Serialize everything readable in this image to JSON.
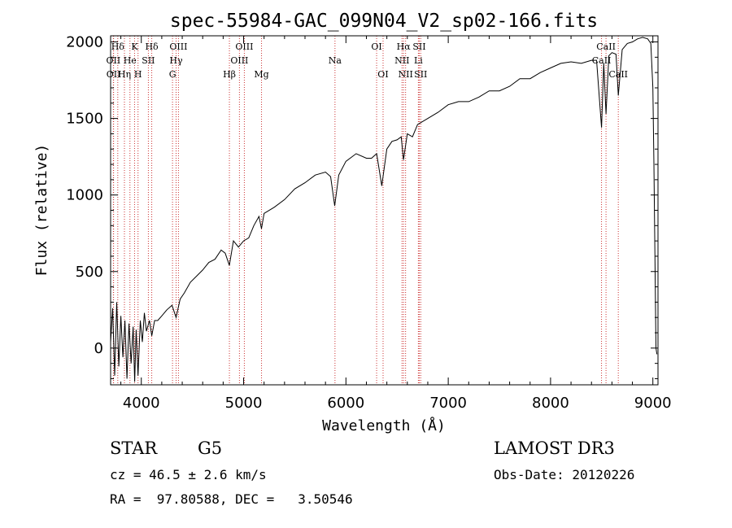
{
  "chart_data": {
    "type": "line",
    "title": "spec-55984-GAC_099N04_V2_sp02-166.fits",
    "xlabel": "Wavelength (Å)",
    "ylabel": "Flux (relative)",
    "xlim": [
      3700,
      9050
    ],
    "ylim": [
      -240,
      2040
    ],
    "xticks": [
      4000,
      5000,
      6000,
      7000,
      8000,
      9000
    ],
    "yticks": [
      0,
      500,
      1000,
      1500,
      2000
    ],
    "series": [
      {
        "name": "Flux",
        "x": [
          3700,
          3720,
          3740,
          3760,
          3780,
          3800,
          3820,
          3840,
          3860,
          3880,
          3900,
          3920,
          3935,
          3950,
          3968,
          3990,
          4010,
          4030,
          4050,
          4080,
          4102,
          4130,
          4160,
          4200,
          4250,
          4300,
          4340,
          4380,
          4420,
          4480,
          4540,
          4600,
          4660,
          4720,
          4780,
          4820,
          4861,
          4900,
          4950,
          5000,
          5050,
          5100,
          5150,
          5175,
          5200,
          5300,
          5400,
          5500,
          5600,
          5700,
          5800,
          5850,
          5890,
          5930,
          6000,
          6100,
          6200,
          6250,
          6300,
          6350,
          6400,
          6450,
          6500,
          6540,
          6563,
          6600,
          6650,
          6700,
          6800,
          6900,
          7000,
          7100,
          7200,
          7300,
          7400,
          7500,
          7600,
          7700,
          7800,
          7900,
          8000,
          8100,
          8200,
          8300,
          8400,
          8450,
          8498,
          8520,
          8542,
          8570,
          8600,
          8640,
          8662,
          8700,
          8750,
          8800,
          8850,
          8900,
          8950,
          8980,
          9000,
          9010,
          9030,
          9040
        ],
        "values": [
          40,
          260,
          -180,
          300,
          -120,
          210,
          -60,
          180,
          -200,
          160,
          -100,
          140,
          -220,
          120,
          -180,
          180,
          40,
          230,
          110,
          180,
          80,
          180,
          180,
          210,
          250,
          280,
          200,
          320,
          360,
          430,
          470,
          510,
          560,
          580,
          640,
          620,
          540,
          700,
          660,
          700,
          720,
          800,
          860,
          780,
          880,
          920,
          970,
          1040,
          1080,
          1130,
          1150,
          1120,
          930,
          1130,
          1220,
          1270,
          1240,
          1240,
          1270,
          1060,
          1300,
          1350,
          1360,
          1380,
          1230,
          1400,
          1380,
          1460,
          1500,
          1540,
          1590,
          1610,
          1610,
          1640,
          1680,
          1680,
          1710,
          1760,
          1760,
          1800,
          1830,
          1860,
          1870,
          1860,
          1880,
          1880,
          1440,
          1860,
          1530,
          1910,
          1930,
          1920,
          1650,
          1950,
          1990,
          2000,
          2020,
          2030,
          2020,
          1990,
          1700,
          1200,
          0,
          -40
        ]
      }
    ],
    "spectral_lines": [
      {
        "label": "Hδ",
        "wavelength": 3770,
        "row": 1
      },
      {
        "label": "OII",
        "wavelength": 3727,
        "row": 2
      },
      {
        "label": "OII",
        "wavelength": 3729,
        "row": 3
      },
      {
        "label": "He",
        "wavelength": 3889,
        "row": 2
      },
      {
        "label": "Hη",
        "wavelength": 3835,
        "row": 3
      },
      {
        "label": "K",
        "wavelength": 3934,
        "row": 1
      },
      {
        "label": "H",
        "wavelength": 3968,
        "row": 3
      },
      {
        "label": "SII",
        "wavelength": 4069,
        "row": 2
      },
      {
        "label": "Hδ",
        "wavelength": 4102,
        "row": 1
      },
      {
        "label": "OIII",
        "wavelength": 4363,
        "row": 1
      },
      {
        "label": "Hγ",
        "wavelength": 4340,
        "row": 2
      },
      {
        "label": "G",
        "wavelength": 4305,
        "row": 3
      },
      {
        "label": "Hβ",
        "wavelength": 4861,
        "row": 3
      },
      {
        "label": "OIII",
        "wavelength": 5007,
        "row": 1
      },
      {
        "label": "OIII",
        "wavelength": 4959,
        "row": 2
      },
      {
        "label": "Mg",
        "wavelength": 5175,
        "row": 3
      },
      {
        "label": "Na",
        "wavelength": 5893,
        "row": 2
      },
      {
        "label": "OI",
        "wavelength": 6300,
        "row": 1
      },
      {
        "label": "OI",
        "wavelength": 6363,
        "row": 3
      },
      {
        "label": "Hα",
        "wavelength": 6563,
        "row": 1
      },
      {
        "label": "NII",
        "wavelength": 6548,
        "row": 2
      },
      {
        "label": "NII",
        "wavelength": 6583,
        "row": 3
      },
      {
        "label": "SII",
        "wavelength": 6717,
        "row": 1
      },
      {
        "label": "Li",
        "wavelength": 6708,
        "row": 2
      },
      {
        "label": "SII",
        "wavelength": 6731,
        "row": 3
      },
      {
        "label": "CaII",
        "wavelength": 8542,
        "row": 1
      },
      {
        "label": "CaII",
        "wavelength": 8498,
        "row": 2
      },
      {
        "label": "CaII",
        "wavelength": 8662,
        "row": 3
      }
    ]
  },
  "info": {
    "object_class": "STAR",
    "subclass": "G5",
    "survey": "LAMOST DR3",
    "redshift_line": "cz = 46.5 ± 2.6 km/s",
    "obs_date": "Obs-Date: 20120226",
    "coords": "RA =  97.80588, DEC =   3.50546"
  },
  "colors": {
    "axes": "#000000",
    "spectrum": "#000000",
    "line_markers": "#cc3333"
  }
}
